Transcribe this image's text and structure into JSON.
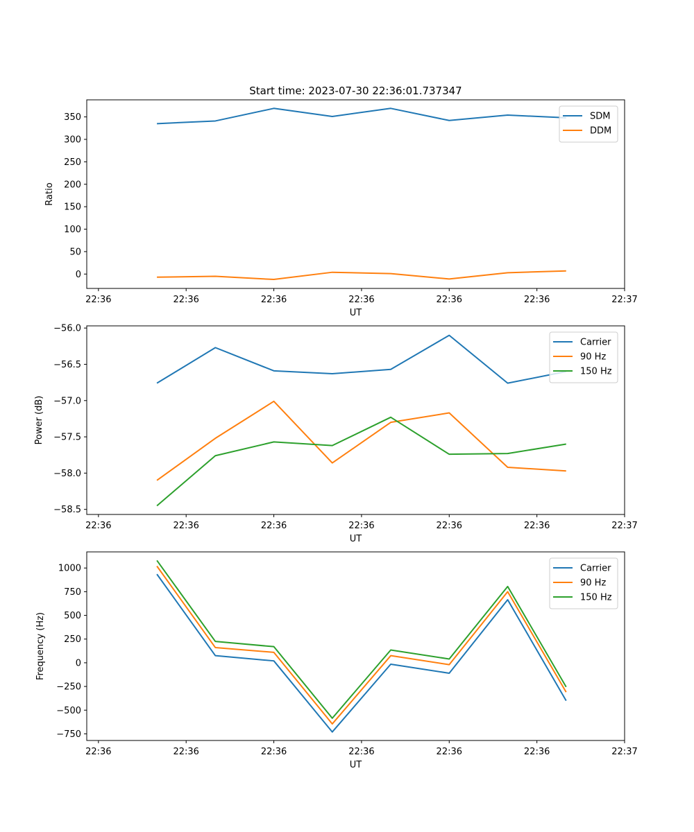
{
  "title": "Start time: 2023-07-30 22:36:01.737347",
  "colors": {
    "blue": "#1f77b4",
    "orange": "#ff7f0e",
    "green": "#2ca02c"
  },
  "chart_data": [
    {
      "type": "line",
      "title": "Start time: 2023-07-30 22:36:01.737347",
      "xlabel": "UT",
      "ylabel": "Ratio",
      "x": [
        1,
        2,
        3,
        4,
        5,
        6,
        7,
        8
      ],
      "x_ticks": [
        0,
        1.5,
        3,
        4.5,
        6,
        7.5,
        9
      ],
      "x_tick_labels": [
        "22:36",
        "22:36",
        "22:36",
        "22:36",
        "22:36",
        "22:36",
        "22:37"
      ],
      "xlim": [
        -0.2,
        9.0
      ],
      "ylim": [
        -32,
        388
      ],
      "y_ticks": [
        0,
        50,
        100,
        150,
        200,
        250,
        300,
        350
      ],
      "y_tick_labels": [
        "0",
        "50",
        "100",
        "150",
        "200",
        "250",
        "300",
        "350"
      ],
      "legend": "upper right",
      "series": [
        {
          "name": "SDM",
          "color": "blue",
          "values": [
            335,
            341,
            369,
            351,
            369,
            342,
            354,
            348
          ]
        },
        {
          "name": "DDM",
          "color": "orange",
          "values": [
            -7,
            -5,
            -12,
            4,
            1,
            -11,
            3,
            7
          ]
        }
      ]
    },
    {
      "type": "line",
      "xlabel": "UT",
      "ylabel": "Power (dB)",
      "x": [
        1,
        2,
        3,
        4,
        5,
        6,
        7,
        8
      ],
      "x_ticks": [
        0,
        1.5,
        3,
        4.5,
        6,
        7.5,
        9
      ],
      "x_tick_labels": [
        "22:36",
        "22:36",
        "22:36",
        "22:36",
        "22:36",
        "22:36",
        "22:37"
      ],
      "xlim": [
        -0.2,
        9.0
      ],
      "ylim": [
        -58.57,
        -55.97
      ],
      "y_ticks": [
        -58.5,
        -58.0,
        -57.5,
        -57.0,
        -56.5,
        -56.0
      ],
      "y_tick_labels": [
        "−58.5",
        "−58.0",
        "−57.5",
        "−57.0",
        "−56.5",
        "−56.0"
      ],
      "legend": "upper right",
      "series": [
        {
          "name": "Carrier",
          "color": "blue",
          "values": [
            -56.76,
            -56.27,
            -56.59,
            -56.63,
            -56.57,
            -56.1,
            -56.76,
            -56.6
          ]
        },
        {
          "name": "90 Hz",
          "color": "orange",
          "values": [
            -58.1,
            -57.52,
            -57.01,
            -57.86,
            -57.3,
            -57.17,
            -57.92,
            -57.97
          ]
        },
        {
          "name": "150 Hz",
          "color": "green",
          "values": [
            -58.45,
            -57.76,
            -57.57,
            -57.62,
            -57.23,
            -57.74,
            -57.73,
            -57.6
          ]
        }
      ]
    },
    {
      "type": "line",
      "xlabel": "UT",
      "ylabel": "Frequency (Hz)",
      "x": [
        1,
        2,
        3,
        4,
        5,
        6,
        7,
        8
      ],
      "x_ticks": [
        0,
        1.5,
        3,
        4.5,
        6,
        7.5,
        9
      ],
      "x_tick_labels": [
        "22:36",
        "22:36",
        "22:36",
        "22:36",
        "22:36",
        "22:36",
        "22:37"
      ],
      "xlim": [
        -0.2,
        9.0
      ],
      "ylim": [
        -820,
        1170
      ],
      "y_ticks": [
        -750,
        -500,
        -250,
        0,
        250,
        500,
        750,
        1000
      ],
      "y_tick_labels": [
        "−750",
        "−500",
        "−250",
        "0",
        "250",
        "500",
        "750",
        "1000"
      ],
      "legend": "upper right",
      "series": [
        {
          "name": "Carrier",
          "color": "blue",
          "values": [
            935,
            75,
            20,
            -730,
            -15,
            -110,
            665,
            -400
          ]
        },
        {
          "name": "90 Hz",
          "color": "orange",
          "values": [
            1020,
            160,
            110,
            -645,
            75,
            -20,
            750,
            -310
          ]
        },
        {
          "name": "150 Hz",
          "color": "green",
          "values": [
            1080,
            225,
            170,
            -585,
            135,
            40,
            805,
            -255
          ]
        }
      ]
    }
  ]
}
